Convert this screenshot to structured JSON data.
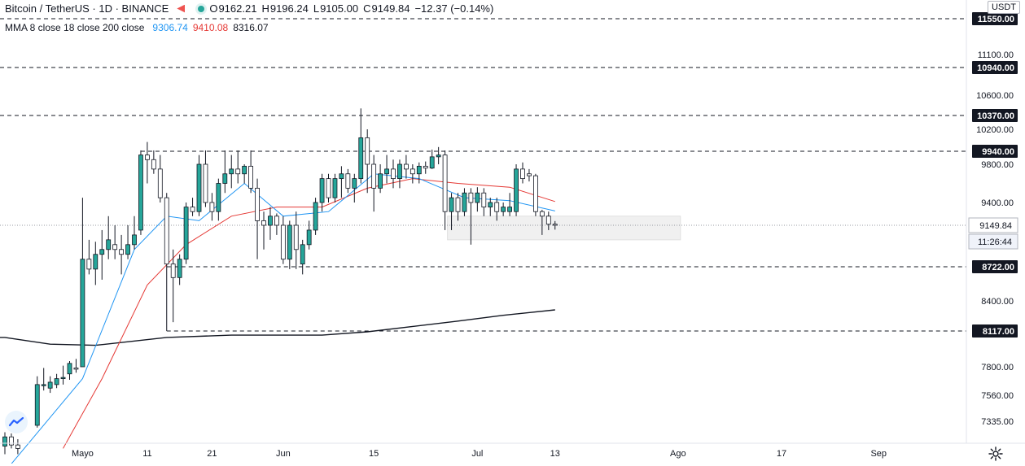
{
  "header": {
    "symbol": "Bitcoin / TetherUS · 1D · BINANCE",
    "ohlc": {
      "o_key": "O",
      "o": "9162.21",
      "h_key": "H",
      "h": "9196.24",
      "l_key": "L",
      "l": "9105.00",
      "c_key": "C",
      "c": "9149.84",
      "change": "−12.37 (−0.14%)"
    }
  },
  "indicator": {
    "label": "MMA 8 close 18 close 200 close",
    "ma8": "9306.74",
    "ma18": "9410.08",
    "ma200": "8316.07"
  },
  "price_scale": {
    "currency": "USDT",
    "ticks": [
      "11100.00",
      "10600.00",
      "10200.00",
      "9800.00",
      "9400.00",
      "7800.00",
      "7560.00",
      "7335.00",
      "8400.00"
    ],
    "level_labels": [
      "11550.00",
      "10940.00",
      "10370.00",
      "9940.00",
      "8722.00",
      "8117.00"
    ],
    "last_price": "9149.84",
    "countdown": "11:26:44"
  },
  "colors": {
    "up": "#26a69a",
    "down": "#ffffff",
    "wick": "#131722",
    "ma8": "#2196f3",
    "ma18": "#e53935",
    "ma200": "#131722"
  },
  "chart_data": {
    "type": "candlestick",
    "x_axis_labels": [
      "Mayo",
      "11",
      "21",
      "Jun",
      "15",
      "Jul",
      "13",
      "Ago",
      "17",
      "Sep"
    ],
    "candles": [
      {
        "date": "2020-04-19",
        "o": 7120,
        "h": 7240,
        "l": 7050,
        "c": 7200
      },
      {
        "date": "2020-04-20",
        "o": 7200,
        "h": 7230,
        "l": 7100,
        "c": 7130
      },
      {
        "date": "2020-04-21",
        "o": 7130,
        "h": 7180,
        "l": 7050,
        "c": 7100
      },
      {
        "date": "2020-04-24",
        "o": 7300,
        "h": 7720,
        "l": 7280,
        "c": 7650
      },
      {
        "date": "2020-04-25",
        "o": 7640,
        "h": 7790,
        "l": 7600,
        "c": 7650
      },
      {
        "date": "2020-04-26",
        "o": 7620,
        "h": 7720,
        "l": 7580,
        "c": 7670
      },
      {
        "date": "2020-04-27",
        "o": 7650,
        "h": 7740,
        "l": 7620,
        "c": 7700
      },
      {
        "date": "2020-04-28",
        "o": 7700,
        "h": 7810,
        "l": 7650,
        "c": 7710
      },
      {
        "date": "2020-04-29",
        "o": 7740,
        "h": 7850,
        "l": 7690,
        "c": 7830
      },
      {
        "date": "2020-04-30",
        "o": 7790,
        "h": 7870,
        "l": 7750,
        "c": 7780
      },
      {
        "date": "2020-05-01",
        "o": 7800,
        "h": 9450,
        "l": 7800,
        "c": 8800
      },
      {
        "date": "2020-05-02",
        "o": 8800,
        "h": 9000,
        "l": 8650,
        "c": 8700
      },
      {
        "date": "2020-05-03",
        "o": 8700,
        "h": 8980,
        "l": 8550,
        "c": 8850
      },
      {
        "date": "2020-05-04",
        "o": 8850,
        "h": 9100,
        "l": 8600,
        "c": 8900
      },
      {
        "date": "2020-05-05",
        "o": 8900,
        "h": 9250,
        "l": 8800,
        "c": 9000
      },
      {
        "date": "2020-05-06",
        "o": 8950,
        "h": 9150,
        "l": 8800,
        "c": 8900
      },
      {
        "date": "2020-05-07",
        "o": 8900,
        "h": 9050,
        "l": 8650,
        "c": 8850
      },
      {
        "date": "2020-05-08",
        "o": 8850,
        "h": 9150,
        "l": 8800,
        "c": 8950
      },
      {
        "date": "2020-05-09",
        "o": 8950,
        "h": 9250,
        "l": 8900,
        "c": 9050
      },
      {
        "date": "2020-05-10",
        "o": 9100,
        "h": 9950,
        "l": 9050,
        "c": 9900
      },
      {
        "date": "2020-05-11",
        "o": 9900,
        "h": 10050,
        "l": 9600,
        "c": 9850
      },
      {
        "date": "2020-05-12",
        "o": 9850,
        "h": 9950,
        "l": 9700,
        "c": 9750
      },
      {
        "date": "2020-05-13",
        "o": 9750,
        "h": 9900,
        "l": 9400,
        "c": 9450
      },
      {
        "date": "2020-05-14",
        "o": 9450,
        "h": 9500,
        "l": 8117,
        "c": 8750
      },
      {
        "date": "2020-05-15",
        "o": 8750,
        "h": 8900,
        "l": 8200,
        "c": 8620
      },
      {
        "date": "2020-05-16",
        "o": 8620,
        "h": 8850,
        "l": 8550,
        "c": 8800
      },
      {
        "date": "2020-05-17",
        "o": 8800,
        "h": 9400,
        "l": 8750,
        "c": 9350
      },
      {
        "date": "2020-05-18",
        "o": 9350,
        "h": 9450,
        "l": 9250,
        "c": 9300
      },
      {
        "date": "2020-05-19",
        "o": 9300,
        "h": 9900,
        "l": 9250,
        "c": 9800
      },
      {
        "date": "2020-05-20",
        "o": 9800,
        "h": 9950,
        "l": 9350,
        "c": 9400
      },
      {
        "date": "2020-05-21",
        "o": 9400,
        "h": 9500,
        "l": 9200,
        "c": 9300
      },
      {
        "date": "2020-05-22",
        "o": 9300,
        "h": 9650,
        "l": 9200,
        "c": 9600
      },
      {
        "date": "2020-05-23",
        "o": 9600,
        "h": 9950,
        "l": 9500,
        "c": 9700
      },
      {
        "date": "2020-05-24",
        "o": 9700,
        "h": 9900,
        "l": 9550,
        "c": 9750
      },
      {
        "date": "2020-05-25",
        "o": 9750,
        "h": 9950,
        "l": 9600,
        "c": 9700
      },
      {
        "date": "2020-05-26",
        "o": 9700,
        "h": 9800,
        "l": 9600,
        "c": 9780
      },
      {
        "date": "2020-05-27",
        "o": 9780,
        "h": 9950,
        "l": 9500,
        "c": 9550
      },
      {
        "date": "2020-05-28",
        "o": 9550,
        "h": 9650,
        "l": 8800,
        "c": 9200
      },
      {
        "date": "2020-05-29",
        "o": 9200,
        "h": 9300,
        "l": 8900,
        "c": 9150
      },
      {
        "date": "2020-05-30",
        "o": 9150,
        "h": 9350,
        "l": 9000,
        "c": 9250
      },
      {
        "date": "2020-05-31",
        "o": 9250,
        "h": 9280,
        "l": 9050,
        "c": 9150
      },
      {
        "date": "2020-06-01",
        "o": 9150,
        "h": 9250,
        "l": 8750,
        "c": 8800
      },
      {
        "date": "2020-06-02",
        "o": 8800,
        "h": 9200,
        "l": 8700,
        "c": 9150
      },
      {
        "date": "2020-06-03",
        "o": 9150,
        "h": 9300,
        "l": 8700,
        "c": 8900
      },
      {
        "date": "2020-06-04",
        "o": 8750,
        "h": 9000,
        "l": 8650,
        "c": 8950
      },
      {
        "date": "2020-06-05",
        "o": 8950,
        "h": 9200,
        "l": 8900,
        "c": 9100
      },
      {
        "date": "2020-06-06",
        "o": 9100,
        "h": 9450,
        "l": 9050,
        "c": 9400
      },
      {
        "date": "2020-06-07",
        "o": 9400,
        "h": 9700,
        "l": 9300,
        "c": 9650
      },
      {
        "date": "2020-06-08",
        "o": 9650,
        "h": 9700,
        "l": 9400,
        "c": 9450
      },
      {
        "date": "2020-06-09",
        "o": 9450,
        "h": 9700,
        "l": 9400,
        "c": 9650
      },
      {
        "date": "2020-06-10",
        "o": 9650,
        "h": 9780,
        "l": 9450,
        "c": 9700
      },
      {
        "date": "2020-06-11",
        "o": 9700,
        "h": 9750,
        "l": 9500,
        "c": 9550
      },
      {
        "date": "2020-06-12",
        "o": 9550,
        "h": 9700,
        "l": 9400,
        "c": 9650
      },
      {
        "date": "2020-06-13",
        "o": 9650,
        "h": 10450,
        "l": 9600,
        "c": 10100
      },
      {
        "date": "2020-06-14",
        "o": 10100,
        "h": 10200,
        "l": 9500,
        "c": 9800
      },
      {
        "date": "2020-06-15",
        "o": 9800,
        "h": 9900,
        "l": 9300,
        "c": 9550
      },
      {
        "date": "2020-06-16",
        "o": 9550,
        "h": 9800,
        "l": 9500,
        "c": 9700
      },
      {
        "date": "2020-06-17",
        "o": 9700,
        "h": 9900,
        "l": 9600,
        "c": 9750
      },
      {
        "date": "2020-06-18",
        "o": 9750,
        "h": 9850,
        "l": 9550,
        "c": 9650
      },
      {
        "date": "2020-06-19",
        "o": 9650,
        "h": 9850,
        "l": 9550,
        "c": 9800
      },
      {
        "date": "2020-06-20",
        "o": 9800,
        "h": 9900,
        "l": 9650,
        "c": 9750
      },
      {
        "date": "2020-06-21",
        "o": 9750,
        "h": 9800,
        "l": 9600,
        "c": 9700
      },
      {
        "date": "2020-06-22",
        "o": 9700,
        "h": 9820,
        "l": 9600,
        "c": 9780
      },
      {
        "date": "2020-06-23",
        "o": 9780,
        "h": 9830,
        "l": 9700,
        "c": 9760
      },
      {
        "date": "2020-06-24",
        "o": 9760,
        "h": 9960,
        "l": 9750,
        "c": 9880
      },
      {
        "date": "2020-06-25",
        "o": 9880,
        "h": 9990,
        "l": 9800,
        "c": 9900
      },
      {
        "date": "2020-06-26",
        "o": 9900,
        "h": 9950,
        "l": 9100,
        "c": 9300
      },
      {
        "date": "2020-06-27",
        "o": 9300,
        "h": 9500,
        "l": 9100,
        "c": 9450
      },
      {
        "date": "2020-06-28",
        "o": 9450,
        "h": 9500,
        "l": 9200,
        "c": 9300
      },
      {
        "date": "2020-06-29",
        "o": 9300,
        "h": 9550,
        "l": 9250,
        "c": 9500
      },
      {
        "date": "2020-06-30",
        "o": 9500,
        "h": 9550,
        "l": 8950,
        "c": 9400
      },
      {
        "date": "2020-07-01",
        "o": 9400,
        "h": 9560,
        "l": 9300,
        "c": 9500
      },
      {
        "date": "2020-07-02",
        "o": 9500,
        "h": 9550,
        "l": 9250,
        "c": 9350
      },
      {
        "date": "2020-07-03",
        "o": 9350,
        "h": 9450,
        "l": 9250,
        "c": 9400
      },
      {
        "date": "2020-07-04",
        "o": 9400,
        "h": 9450,
        "l": 9200,
        "c": 9300
      },
      {
        "date": "2020-07-05",
        "o": 9300,
        "h": 9400,
        "l": 9250,
        "c": 9350
      },
      {
        "date": "2020-07-06",
        "o": 9300,
        "h": 9500,
        "l": 9250,
        "c": 9350
      },
      {
        "date": "2020-07-07",
        "o": 9300,
        "h": 9800,
        "l": 9250,
        "c": 9750
      },
      {
        "date": "2020-07-08",
        "o": 9750,
        "h": 9820,
        "l": 9600,
        "c": 9650
      },
      {
        "date": "2020-07-09",
        "o": 9700,
        "h": 9750,
        "l": 9620,
        "c": 9680
      },
      {
        "date": "2020-07-10",
        "o": 9680,
        "h": 9700,
        "l": 9250,
        "c": 9300
      },
      {
        "date": "2020-07-11",
        "o": 9300,
        "h": 9320,
        "l": 9050,
        "c": 9250
      },
      {
        "date": "2020-07-12",
        "o": 9250,
        "h": 9300,
        "l": 9100,
        "c": 9162
      },
      {
        "date": "2020-07-13",
        "o": 9162.21,
        "h": 9196.24,
        "l": 9105,
        "c": 9149.84
      }
    ],
    "moving_averages": [
      {
        "name": "MMA 8",
        "values_anchor": [
          "2020-04-19",
          6900,
          "2020-05-01",
          7700,
          "2020-05-09",
          8900,
          "2020-05-14",
          9250,
          "2020-05-19",
          9200,
          "2020-05-26",
          9600,
          "2020-06-01",
          9250,
          "2020-06-08",
          9300,
          "2020-06-15",
          9700,
          "2020-06-22",
          9650,
          "2020-06-29",
          9450,
          "2020-07-06",
          9420,
          "2020-07-13",
          9306.74
        ]
      },
      {
        "name": "MMA 18",
        "values_anchor": [
          "2020-04-28",
          7100,
          "2020-05-04",
          7700,
          "2020-05-11",
          8550,
          "2020-05-17",
          8950,
          "2020-05-24",
          9250,
          "2020-05-31",
          9350,
          "2020-06-07",
          9350,
          "2020-06-14",
          9550,
          "2020-06-21",
          9650,
          "2020-06-28",
          9600,
          "2020-07-06",
          9560,
          "2020-07-13",
          9410.08
        ]
      },
      {
        "name": "MMA 200",
        "values_anchor": [
          "2020-04-19",
          8060,
          "2020-04-26",
          8000,
          "2020-05-03",
          7990,
          "2020-05-14",
          8060,
          "2020-05-24",
          8080,
          "2020-06-07",
          8080,
          "2020-06-14",
          8110,
          "2020-06-21",
          8160,
          "2020-06-28",
          8210,
          "2020-07-05",
          8265,
          "2020-07-13",
          8316.07
        ]
      }
    ],
    "horizontal_levels": [
      11550,
      10940,
      10370,
      9940,
      8722,
      8117
    ],
    "partial_levels": [
      {
        "value": 9940,
        "from": "2020-05-10"
      },
      {
        "value": 8722,
        "from": "2020-05-14"
      },
      {
        "value": 8117,
        "from": "2020-05-14"
      }
    ],
    "zone": {
      "from": "2020-06-26",
      "to": "2020-08-01",
      "top": 9250,
      "bottom": 9000
    },
    "last_price": 9149.84
  }
}
